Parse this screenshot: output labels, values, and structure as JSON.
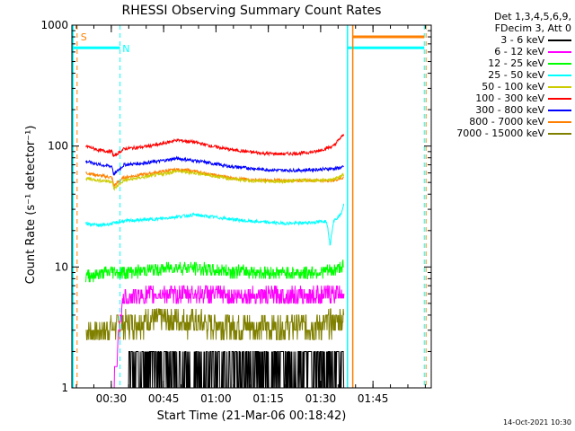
{
  "chart_data": {
    "type": "line",
    "title": "RHESSI Observing Summary Count Rates",
    "xlabel": "Start Time (21-Mar-06 00:18:42)",
    "ylabel": "Count Rate (s⁻¹ detector⁻¹)",
    "yscale": "log",
    "ylim": [
      1,
      1000
    ],
    "xlim_minutes": [
      0,
      103
    ],
    "x_ticks": [
      "00:30",
      "00:45",
      "01:00",
      "01:15",
      "01:30",
      "01:45"
    ],
    "x_ticks_minutes": [
      11.3,
      26.3,
      41.3,
      56.3,
      71.3,
      86.3
    ],
    "y_ticks": [
      "1",
      "10",
      "100",
      "1000"
    ],
    "y_ticks_values": [
      1,
      10,
      100,
      1000
    ],
    "grid": false,
    "legend_placement": "outside-right",
    "legend_header": [
      "Det 1,3,4,5,6,9,",
      "FDecim 3, Att 0"
    ],
    "series": [
      {
        "name": "3 - 6 keV",
        "color": "#000000",
        "x": [
          16,
          20,
          25,
          30,
          35,
          40,
          45,
          50,
          55,
          60,
          65,
          70,
          73,
          75,
          77,
          78
        ],
        "y": [
          1.3,
          1.5,
          1.2,
          1.6,
          1.3,
          1.5,
          1.2,
          1.4,
          1.6,
          1.3,
          1.5,
          1.6,
          1.8,
          1.7,
          1.6,
          1.5
        ]
      },
      {
        "name": "6 - 12 keV",
        "color": "#ff00ff",
        "x": [
          12,
          13,
          13.3,
          15,
          20,
          25,
          30,
          35,
          40,
          45,
          50,
          55,
          60,
          65,
          70,
          75,
          78
        ],
        "y": [
          1,
          1.6,
          3,
          5.6,
          5.8,
          6.0,
          5.9,
          6.1,
          6.0,
          5.8,
          5.9,
          5.8,
          5.9,
          5.8,
          5.9,
          6.0,
          6.3
        ]
      },
      {
        "name": "12 - 25 keV",
        "color": "#00ff00",
        "x": [
          4,
          8,
          12,
          15,
          20,
          25,
          30,
          35,
          40,
          45,
          50,
          55,
          60,
          65,
          70,
          75,
          78
        ],
        "y": [
          8.5,
          8.8,
          9.2,
          9.0,
          9.3,
          9.6,
          10.0,
          9.8,
          9.5,
          9.3,
          9.2,
          9.0,
          8.9,
          9.0,
          9.1,
          9.4,
          10.2
        ]
      },
      {
        "name": "25 - 50 keV",
        "color": "#00ffff",
        "x": [
          4,
          8,
          12,
          15,
          20,
          25,
          30,
          35,
          40,
          45,
          50,
          55,
          60,
          65,
          70,
          73,
          74,
          75,
          77,
          78
        ],
        "y": [
          23,
          22,
          23,
          24,
          24.5,
          25,
          26,
          27,
          26,
          25,
          24,
          23.5,
          23,
          23,
          23.5,
          24,
          15,
          24,
          27,
          33
        ]
      },
      {
        "name": "50 - 100 keV",
        "color": "#cccc00",
        "x": [
          4,
          8,
          11.5,
          12,
          15,
          20,
          25,
          30,
          35,
          40,
          45,
          50,
          55,
          60,
          65,
          70,
          75,
          78
        ],
        "y": [
          54,
          52,
          51,
          44,
          52,
          55,
          58,
          62,
          60,
          57,
          54,
          52,
          51,
          51,
          52,
          52,
          53,
          58
        ]
      },
      {
        "name": "100 - 300 keV",
        "color": "#ff0000",
        "x": [
          4,
          8,
          11.5,
          12,
          15,
          20,
          25,
          30,
          35,
          40,
          45,
          50,
          55,
          60,
          65,
          70,
          75,
          78
        ],
        "y": [
          100,
          92,
          90,
          82,
          95,
          98,
          103,
          112,
          108,
          100,
          94,
          90,
          87,
          86,
          87,
          90,
          100,
          125
        ]
      },
      {
        "name": "300 - 800 keV",
        "color": "#0000ff",
        "x": [
          4,
          8,
          11.5,
          12,
          15,
          20,
          25,
          30,
          35,
          40,
          45,
          50,
          55,
          60,
          65,
          70,
          75,
          78
        ],
        "y": [
          75,
          70,
          68,
          58,
          70,
          72,
          75,
          79,
          76,
          72,
          68,
          66,
          64,
          63,
          63,
          64,
          65,
          67
        ]
      },
      {
        "name": "800 - 7000 keV",
        "color": "#ff8000",
        "x": [
          4,
          8,
          11.5,
          12,
          15,
          20,
          25,
          30,
          35,
          40,
          45,
          50,
          55,
          60,
          65,
          70,
          75,
          78
        ],
        "y": [
          60,
          57,
          55,
          47,
          55,
          58,
          61,
          64,
          62,
          58,
          55,
          53,
          52,
          52,
          52,
          52,
          52,
          55
        ]
      },
      {
        "name": "7000 - 15000 keV",
        "color": "#808000",
        "x": [
          4,
          8,
          12,
          15,
          20,
          25,
          30,
          35,
          40,
          45,
          50,
          55,
          60,
          65,
          70,
          75,
          78
        ],
        "y": [
          2.9,
          3.0,
          3.2,
          3.4,
          3.6,
          3.8,
          3.7,
          3.5,
          3.4,
          3.3,
          3.3,
          3.2,
          3.2,
          3.3,
          3.3,
          3.5,
          3.8
        ]
      }
    ],
    "annotations": [
      {
        "text": "S",
        "color": "#ff8000",
        "x": 2.5,
        "y": 800
      },
      {
        "text": "N",
        "color": "#00ffff",
        "x": 14.5,
        "y": 640
      }
    ],
    "flags": [
      {
        "name": "SAA",
        "color": "#ff8000",
        "style": "dashed",
        "x": [
          1.5,
          101.5
        ]
      },
      {
        "name": "Night",
        "color": "#00ffff",
        "style": "dashed",
        "x": [
          13.8,
          101
        ]
      },
      {
        "name": "Night-level",
        "color": "#00ffff",
        "style": "solid",
        "segments": [
          [
            0,
            13.8,
            650
          ],
          [
            79,
            101,
            650
          ]
        ],
        "edges": [
          0.3,
          79
        ]
      },
      {
        "name": "SAA-level",
        "color": "#ff8000",
        "style": "solid",
        "segments": [
          [
            80.5,
            101,
            800
          ]
        ],
        "edges": [
          80.5
        ]
      }
    ]
  },
  "footer": {
    "timestamp": "14-Oct-2021 10:30"
  }
}
